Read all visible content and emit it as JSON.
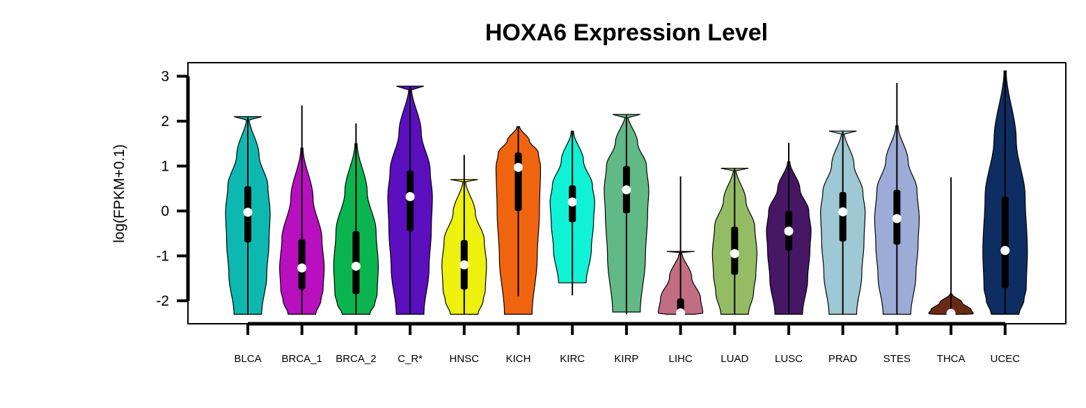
{
  "chart_data": {
    "type": "violin",
    "title": "HOXA6 Expression Level",
    "ylabel": "log(FPKM+0.1)",
    "xlabel": "",
    "ylim": [
      -2.5,
      3.3
    ],
    "yticks": [
      -2,
      -1,
      0,
      1,
      2,
      3
    ],
    "ytick_labels": [
      "-2",
      "-1",
      "0",
      "1",
      "2",
      "3"
    ],
    "grid": false,
    "legend": "none",
    "categories": [
      "BLCA",
      "BRCA_1",
      "BRCA_2",
      "C_R*",
      "HNSC",
      "KICH",
      "KIRC",
      "KIRP",
      "LIHC",
      "LUAD",
      "LUSC",
      "PRAD",
      "STES",
      "THCA",
      "UCEC"
    ],
    "violins": [
      {
        "category": "BLCA",
        "color": "#0db8b0",
        "min": -2.3,
        "max": 2.1,
        "q1": -0.7,
        "median": -0.03,
        "q3": 0.55,
        "whisker_low": -2.3,
        "whisker_high": 2.1
      },
      {
        "category": "BRCA_1",
        "color": "#b80fbf",
        "min": -2.3,
        "max": 1.4,
        "q1": -1.75,
        "median": -1.27,
        "q3": -0.63,
        "whisker_low": -2.3,
        "whisker_high": 2.35
      },
      {
        "category": "BRCA_2",
        "color": "#0ab44f",
        "min": -2.3,
        "max": 1.5,
        "q1": -1.85,
        "median": -1.23,
        "q3": -0.45,
        "whisker_low": -2.3,
        "whisker_high": 1.95
      },
      {
        "category": "C_R*",
        "color": "#5b0fbf",
        "min": -2.3,
        "max": 2.78,
        "q1": -0.45,
        "median": 0.32,
        "q3": 0.9,
        "whisker_low": -2.3,
        "whisker_high": 2.78
      },
      {
        "category": "HNSC",
        "color": "#eef00e",
        "min": -2.3,
        "max": 0.7,
        "q1": -1.75,
        "median": -1.2,
        "q3": -0.65,
        "whisker_low": -2.3,
        "whisker_high": 1.25
      },
      {
        "category": "KICH",
        "color": "#f06410",
        "min": -2.3,
        "max": 1.88,
        "q1": 0.0,
        "median": 0.97,
        "q3": 1.3,
        "whisker_low": -1.9,
        "whisker_high": 1.88
      },
      {
        "category": "KIRC",
        "color": "#0ff2d6",
        "min": -1.6,
        "max": 1.78,
        "q1": -0.25,
        "median": 0.2,
        "q3": 0.57,
        "whisker_low": -1.88,
        "whisker_high": 1.78
      },
      {
        "category": "KIRP",
        "color": "#61b985",
        "min": -2.25,
        "max": 2.15,
        "q1": -0.05,
        "median": 0.47,
        "q3": 1.0,
        "whisker_low": -2.3,
        "whisker_high": 2.15
      },
      {
        "category": "LIHC",
        "color": "#c16d82",
        "min": -2.3,
        "max": -0.9,
        "q1": -2.3,
        "median": -2.27,
        "q3": -1.95,
        "whisker_low": -2.3,
        "whisker_high": 0.77
      },
      {
        "category": "LUAD",
        "color": "#94bc64",
        "min": -2.3,
        "max": 0.95,
        "q1": -1.42,
        "median": -0.95,
        "q3": -0.35,
        "whisker_low": -2.3,
        "whisker_high": 0.95
      },
      {
        "category": "LUSC",
        "color": "#451765",
        "min": -2.3,
        "max": 1.1,
        "q1": -0.88,
        "median": -0.45,
        "q3": 0.0,
        "whisker_low": -2.3,
        "whisker_high": 1.52
      },
      {
        "category": "PRAD",
        "color": "#9dc8d4",
        "min": -2.3,
        "max": 1.78,
        "q1": -0.68,
        "median": -0.02,
        "q3": 0.42,
        "whisker_low": -2.3,
        "whisker_high": 1.78
      },
      {
        "category": "STES",
        "color": "#9cacd6",
        "min": -2.3,
        "max": 1.9,
        "q1": -0.75,
        "median": -0.17,
        "q3": 0.47,
        "whisker_low": -2.3,
        "whisker_high": 2.85
      },
      {
        "category": "THCA",
        "color": "#6a2a13",
        "min": -2.3,
        "max": -1.85,
        "q1": -2.3,
        "median": -2.28,
        "q3": -2.2,
        "whisker_low": -2.3,
        "whisker_high": 0.75
      },
      {
        "category": "UCEC",
        "color": "#0e2d62",
        "min": -2.3,
        "max": 3.12,
        "q1": -1.72,
        "median": -0.88,
        "q3": 0.32,
        "whisker_low": -2.3,
        "whisker_high": 3.12
      }
    ]
  }
}
